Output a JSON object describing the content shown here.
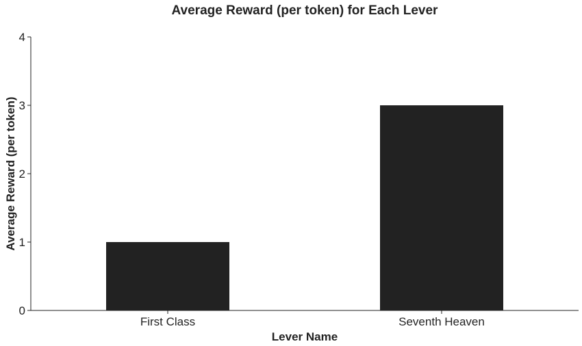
{
  "chart_data": {
    "type": "bar",
    "title": "Average Reward (per token) for Each Lever",
    "xlabel": "Lever Name",
    "ylabel": "Average Reward (per token)",
    "categories": [
      "First Class",
      "Seventh Heaven"
    ],
    "values": [
      1,
      3
    ],
    "ylim": [
      0,
      4
    ],
    "yticks": [
      0,
      1,
      2,
      3,
      4
    ],
    "grid": false,
    "legend": "none",
    "colors": {
      "bar": "#222222",
      "axis": "#222222",
      "text": "#222222"
    }
  }
}
